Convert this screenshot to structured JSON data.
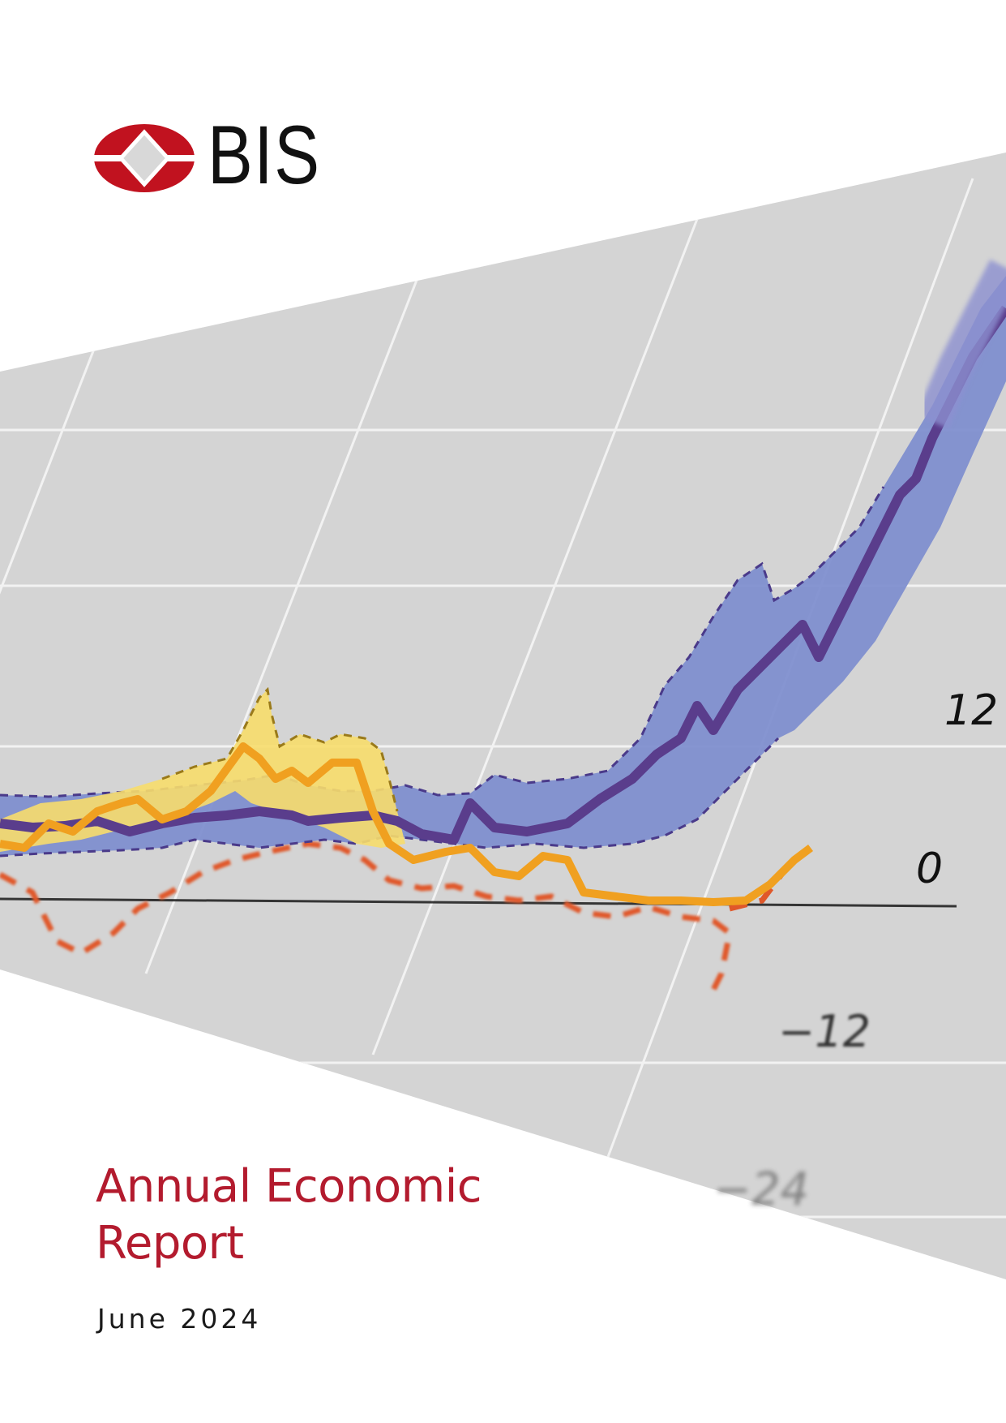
{
  "brand": {
    "name": "BIS",
    "logo_colors": {
      "red": "#c1121f",
      "diamond": "#d8d8d8"
    }
  },
  "cover": {
    "title_line1": "Annual Economic",
    "title_line2": "Report",
    "date": "June 2024"
  },
  "cover_art": {
    "tick_labels": [
      "12",
      "0",
      "−12",
      "−24"
    ],
    "colors": {
      "panel": "#d4d4d4",
      "grid": "#f2f2f2",
      "band_blue": "#7f8fcf",
      "line_purple": "#5a3d8c",
      "band_yellow": "#f7dd6b",
      "line_orange": "#f0a020",
      "dash_red": "#e0582a"
    }
  }
}
